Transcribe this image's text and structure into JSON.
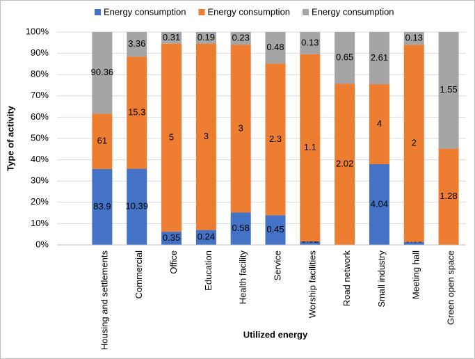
{
  "chart_data": {
    "type": "bar",
    "stacking": "percent",
    "categories": [
      "Housing and settlements",
      "Commercial",
      "Office",
      "Education",
      "Health facility",
      "Service",
      "Worship facilities",
      "Road network",
      "Small industry",
      "Meeting hall",
      "Green open space"
    ],
    "series": [
      {
        "name": "Energy consumption",
        "color": "#4472c4",
        "values": [
          83.9,
          10.39,
          0.35,
          0.24,
          0.58,
          0.45,
          0.02,
          0,
          4.04,
          0.03,
          0
        ]
      },
      {
        "name": "Energy consumption",
        "color": "#ed7d31",
        "values": [
          61,
          15.3,
          5,
          3,
          3,
          2.3,
          1.1,
          2.02,
          4,
          2,
          1.28
        ]
      },
      {
        "name": "Energy consumption",
        "color": "#a5a5a5",
        "values": [
          90.36,
          3.36,
          0.31,
          0.19,
          0.23,
          0.48,
          0.13,
          0.65,
          2.61,
          0.13,
          1.55
        ]
      }
    ],
    "ylabel": "Type of activity",
    "xlabel": "Utilized energy",
    "ylim": [
      0,
      100
    ],
    "yticks": [
      {
        "value": 0,
        "label": "0%"
      },
      {
        "value": 10,
        "label": "10%"
      },
      {
        "value": 20,
        "label": "20%"
      },
      {
        "value": 30,
        "label": "30%"
      },
      {
        "value": 40,
        "label": "40%"
      },
      {
        "value": 50,
        "label": "50%"
      },
      {
        "value": 60,
        "label": "60%"
      },
      {
        "value": 70,
        "label": "70%"
      },
      {
        "value": 80,
        "label": "80%"
      },
      {
        "value": 90,
        "label": "90%"
      },
      {
        "value": 100,
        "label": "100%"
      }
    ],
    "grid": true,
    "legend": "top"
  }
}
